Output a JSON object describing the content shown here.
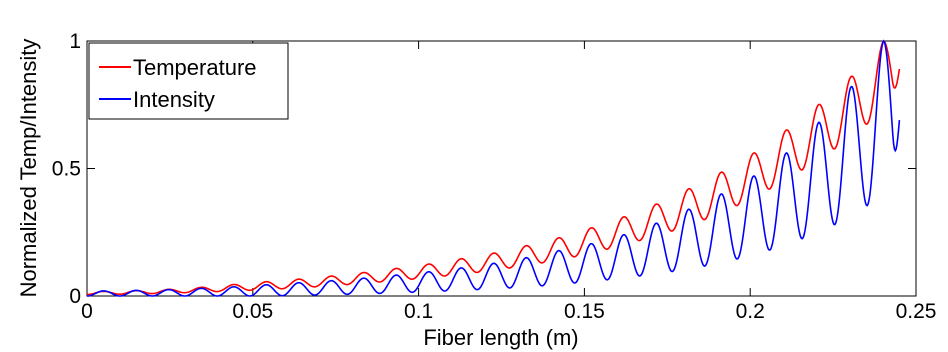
{
  "chart_data": {
    "type": "line",
    "xlabel": "Fiber length (m)",
    "ylabel": "Normalized Temp/Intensity",
    "xlim": [
      0,
      0.25
    ],
    "ylim": [
      0,
      1
    ],
    "xticks": [
      "0",
      "0.05",
      "0.1",
      "0.15",
      "0.2",
      "0.25"
    ],
    "xtick_values": [
      0,
      0.05,
      0.1,
      0.15,
      0.2,
      0.25
    ],
    "yticks": [
      "0",
      "0.5",
      "1"
    ],
    "ytick_values": [
      0,
      0.5,
      1
    ],
    "grid": false,
    "legend_position": "top-left",
    "series": [
      {
        "name": "Temperature",
        "color": "#ff0000",
        "x_end": 0.245,
        "x_peaks": [
          0.005,
          0.0148,
          0.0246,
          0.0344,
          0.0442,
          0.054,
          0.0638,
          0.0736,
          0.0834,
          0.0932,
          0.103,
          0.1128,
          0.1226,
          0.1324,
          0.1422,
          0.152,
          0.1618,
          0.1716,
          0.1814,
          0.1912,
          0.201,
          0.2108,
          0.2206,
          0.2304,
          0.2402
        ],
        "peak_values": [
          0.018,
          0.021,
          0.026,
          0.034,
          0.045,
          0.056,
          0.066,
          0.078,
          0.092,
          0.108,
          0.125,
          0.146,
          0.168,
          0.197,
          0.228,
          0.267,
          0.31,
          0.36,
          0.42,
          0.485,
          0.56,
          0.65,
          0.75,
          0.86,
          1.0
        ],
        "trough_values": [
          0.006,
          0.008,
          0.011,
          0.015,
          0.02,
          0.025,
          0.032,
          0.04,
          0.05,
          0.06,
          0.072,
          0.085,
          0.1,
          0.12,
          0.14,
          0.168,
          0.2,
          0.235,
          0.275,
          0.325,
          0.385,
          0.455,
          0.535,
          0.62,
          0.73
        ],
        "end_value": 0.89
      },
      {
        "name": "Intensity",
        "color": "#0000ff",
        "x_end": 0.245,
        "x_peaks": [
          0.005,
          0.0148,
          0.0246,
          0.0344,
          0.0442,
          0.054,
          0.0638,
          0.0736,
          0.0834,
          0.0932,
          0.103,
          0.1128,
          0.1226,
          0.1324,
          0.1422,
          0.152,
          0.1618,
          0.1716,
          0.1814,
          0.1912,
          0.201,
          0.2108,
          0.2206,
          0.2304,
          0.2402
        ],
        "peak_values": [
          0.02,
          0.022,
          0.025,
          0.03,
          0.036,
          0.044,
          0.052,
          0.06,
          0.07,
          0.082,
          0.095,
          0.11,
          0.128,
          0.15,
          0.178,
          0.205,
          0.24,
          0.285,
          0.34,
          0.4,
          0.47,
          0.56,
          0.68,
          0.82,
          1.0
        ],
        "trough_values": [
          0.0,
          0.0,
          0.0,
          0.0,
          0.0,
          0.0,
          0.002,
          0.005,
          0.008,
          0.012,
          0.017,
          0.022,
          0.028,
          0.035,
          0.045,
          0.057,
          0.07,
          0.087,
          0.105,
          0.13,
          0.16,
          0.2,
          0.25,
          0.31,
          0.4
        ],
        "end_value": 0.69
      }
    ]
  }
}
